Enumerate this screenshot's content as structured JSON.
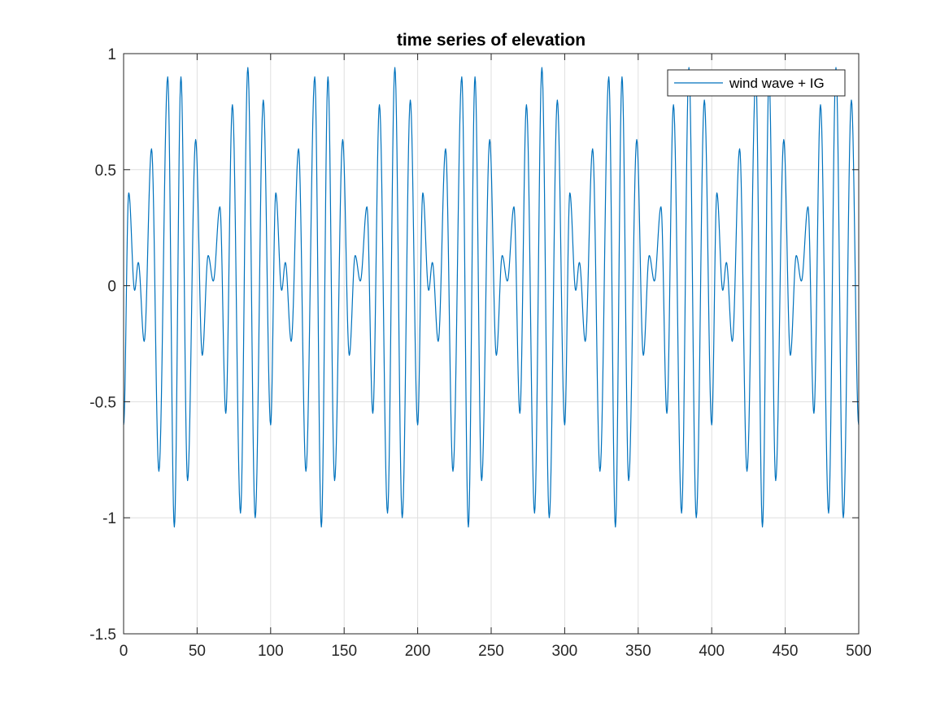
{
  "chart_data": {
    "type": "line",
    "title": "time series of elevation",
    "xlabel": "",
    "ylabel": "",
    "xlim": [
      0,
      500
    ],
    "ylim": [
      -1.5,
      1
    ],
    "xticks": [
      "0",
      "50",
      "100",
      "150",
      "200",
      "250",
      "300",
      "350",
      "400",
      "450",
      "500"
    ],
    "yticks": [
      "1",
      "0.5",
      "0",
      "-0.5",
      "-1",
      "-1.5"
    ],
    "grid": true,
    "legend_position": "top-right",
    "colors": {
      "series": "#0072bd",
      "axis": "#262626",
      "grid": "#dfdfdf"
    },
    "series": [
      {
        "name": "wind wave + IG",
        "period_approx": 100,
        "x": [
          0,
          3.5,
          7.5,
          10,
          14,
          19,
          24,
          30,
          34.5,
          39,
          43.5,
          49,
          53.5,
          57.5,
          61,
          65.5,
          69.5,
          74,
          79.5,
          84.5,
          89.5,
          95,
          100,
          103.5,
          107.5,
          110,
          114,
          119,
          124,
          130,
          134.5,
          139,
          143.5,
          149,
          153.5,
          157.5,
          161,
          165.5,
          169.5,
          174,
          179.5,
          184.5,
          189.5,
          195,
          200,
          203.5,
          207.5,
          210,
          214,
          219,
          224,
          230,
          234.5,
          239,
          243.5,
          249,
          253.5,
          257.5,
          261,
          265.5,
          269.5,
          274,
          279.5,
          284.5,
          289.5,
          295,
          300,
          303.5,
          307.5,
          310,
          314,
          319,
          324,
          330,
          334.5,
          339,
          343.5,
          349,
          353.5,
          357.5,
          361,
          365.5,
          369.5,
          374,
          379.5,
          384.5,
          389.5,
          395,
          400,
          403.5,
          407.5,
          410,
          414,
          419,
          424,
          430,
          434.5,
          439,
          443.5,
          449,
          453.5,
          457.5,
          461,
          465.5,
          469.5,
          474,
          479.5,
          484.5,
          489.5,
          495,
          500
        ],
        "y": [
          -0.6,
          0.4,
          -0.02,
          0.1,
          -0.24,
          0.59,
          -0.8,
          0.9,
          -1.04,
          0.9,
          -0.84,
          0.63,
          -0.3,
          0.13,
          0.02,
          0.34,
          -0.55,
          0.78,
          -0.98,
          0.94,
          -1.0,
          0.8,
          -0.6,
          0.4,
          -0.02,
          0.1,
          -0.24,
          0.59,
          -0.8,
          0.9,
          -1.04,
          0.9,
          -0.84,
          0.63,
          -0.3,
          0.13,
          0.02,
          0.34,
          -0.55,
          0.78,
          -0.98,
          0.94,
          -1.0,
          0.8,
          -0.6,
          0.4,
          -0.02,
          0.1,
          -0.24,
          0.59,
          -0.8,
          0.9,
          -1.04,
          0.9,
          -0.84,
          0.63,
          -0.3,
          0.13,
          0.02,
          0.34,
          -0.55,
          0.78,
          -0.98,
          0.94,
          -1.0,
          0.8,
          -0.6,
          0.4,
          -0.02,
          0.1,
          -0.24,
          0.59,
          -0.8,
          0.9,
          -1.04,
          0.9,
          -0.84,
          0.63,
          -0.3,
          0.13,
          0.02,
          0.34,
          -0.55,
          0.78,
          -0.98,
          0.94,
          -1.0,
          0.8,
          -0.6,
          0.4,
          -0.02,
          0.1,
          -0.24,
          0.59,
          -0.8,
          0.9,
          -1.04,
          0.9,
          -0.84,
          0.63,
          -0.3,
          0.13,
          0.02,
          0.34,
          -0.55,
          0.78,
          -0.98,
          0.94,
          -1.0,
          0.8,
          -0.6
        ]
      }
    ]
  }
}
